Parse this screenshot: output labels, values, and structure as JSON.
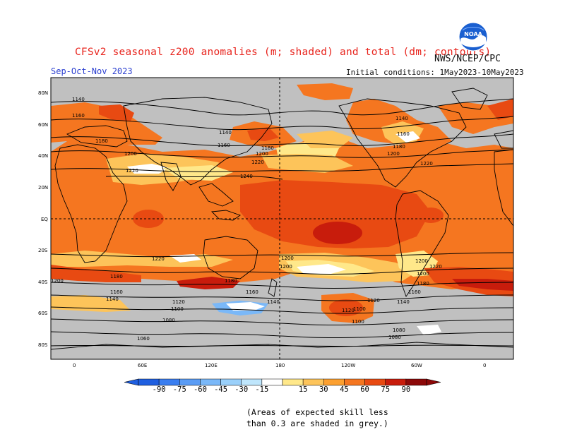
{
  "header": {
    "title": "CFSv2 seasonal z200 anomalies (m; shaded) and total (dm; contours)",
    "season": "Sep-Oct-Nov 2023",
    "agency": "NWS/NCEP/CPC",
    "initial_conditions": "Initial conditions: 1May2023-10May2023",
    "logo_text": "NOAA"
  },
  "map": {
    "lat_labels": [
      "80N",
      "60N",
      "40N",
      "20N",
      "EQ",
      "20S",
      "40S",
      "60S",
      "80S"
    ],
    "lon_labels": [
      "0",
      "60E",
      "120E",
      "180",
      "120W",
      "60W",
      "0"
    ],
    "contour_labels": [
      "1140",
      "1160",
      "1180",
      "1200",
      "1220",
      "1240",
      "1140",
      "1160",
      "1180",
      "1200",
      "1220",
      "1200",
      "1220",
      "1140",
      "1160",
      "1180",
      "1200",
      "1220",
      "1200",
      "1180",
      "1160",
      "1140",
      "1120",
      "1100",
      "1080",
      "1060",
      "1200",
      "1180",
      "1160",
      "1140",
      "1120",
      "1100",
      "1080",
      "1180",
      "1160",
      "1140",
      "1120",
      "1100",
      "1080",
      "1200",
      "1220",
      "1200"
    ],
    "colors": {
      "background": "#c0c0c0",
      "land_outline": "#000000"
    }
  },
  "colorbar": {
    "labels": [
      "-90",
      "-75",
      "-60",
      "-45",
      "-30",
      "-15",
      "15",
      "30",
      "45",
      "60",
      "75",
      "90"
    ],
    "colors": [
      "#1f5fe0",
      "#3a7ef0",
      "#5a9cf5",
      "#7ab8f8",
      "#9ad0fa",
      "#bfe6fc",
      "#ffffff",
      "#ffe88a",
      "#fdc45a",
      "#fca030",
      "#f57620",
      "#e84a12",
      "#c81c0c",
      "#8c0808"
    ]
  },
  "footnote": {
    "line1": "(Areas of expected skill less",
    "line2": "than 0.3 are shaded in grey.)"
  }
}
